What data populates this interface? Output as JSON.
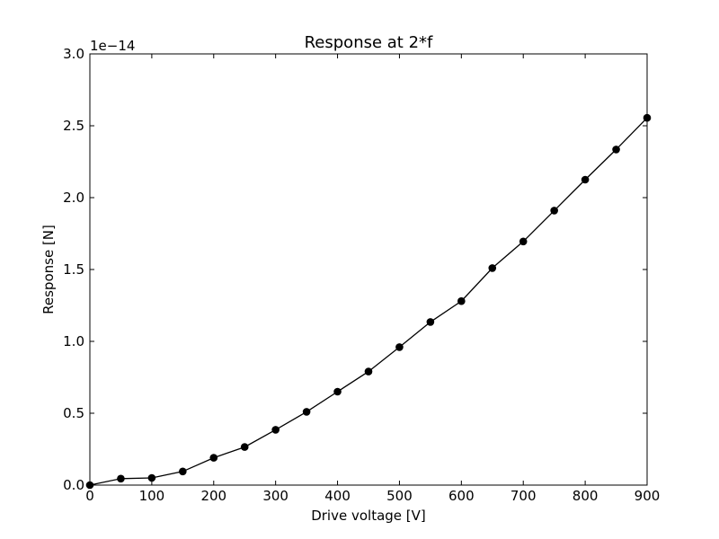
{
  "chart_data": {
    "type": "line",
    "title": "Response at 2*f",
    "xlabel": "Drive voltage [V]",
    "ylabel": "Response [N]",
    "y_offset_label": "1e−14",
    "xlim": [
      0,
      900
    ],
    "ylim": [
      0,
      3.0
    ],
    "y_scale_factor": 1e-14,
    "grid": false,
    "x_ticks": [
      0,
      100,
      200,
      300,
      400,
      500,
      600,
      700,
      800,
      900
    ],
    "x_tick_labels": [
      "0",
      "100",
      "200",
      "300",
      "400",
      "500",
      "600",
      "700",
      "800",
      "900"
    ],
    "y_ticks": [
      0,
      0.5,
      1.0,
      1.5,
      2.0,
      2.5,
      3.0
    ],
    "y_tick_labels": [
      "0.0",
      "0.5",
      "1.0",
      "1.5",
      "2.0",
      "2.5",
      "3.0"
    ],
    "series": [
      {
        "color": "#000000",
        "marker": "circle",
        "x": [
          0,
          50,
          100,
          150,
          200,
          250,
          300,
          350,
          400,
          450,
          500,
          550,
          600,
          650,
          700,
          750,
          800,
          850,
          900
        ],
        "y": [
          0.0,
          0.045,
          0.05,
          0.095,
          0.19,
          0.265,
          0.385,
          0.51,
          0.65,
          0.79,
          0.96,
          1.135,
          1.28,
          1.51,
          1.695,
          1.91,
          2.125,
          2.335,
          2.555
        ]
      }
    ]
  }
}
